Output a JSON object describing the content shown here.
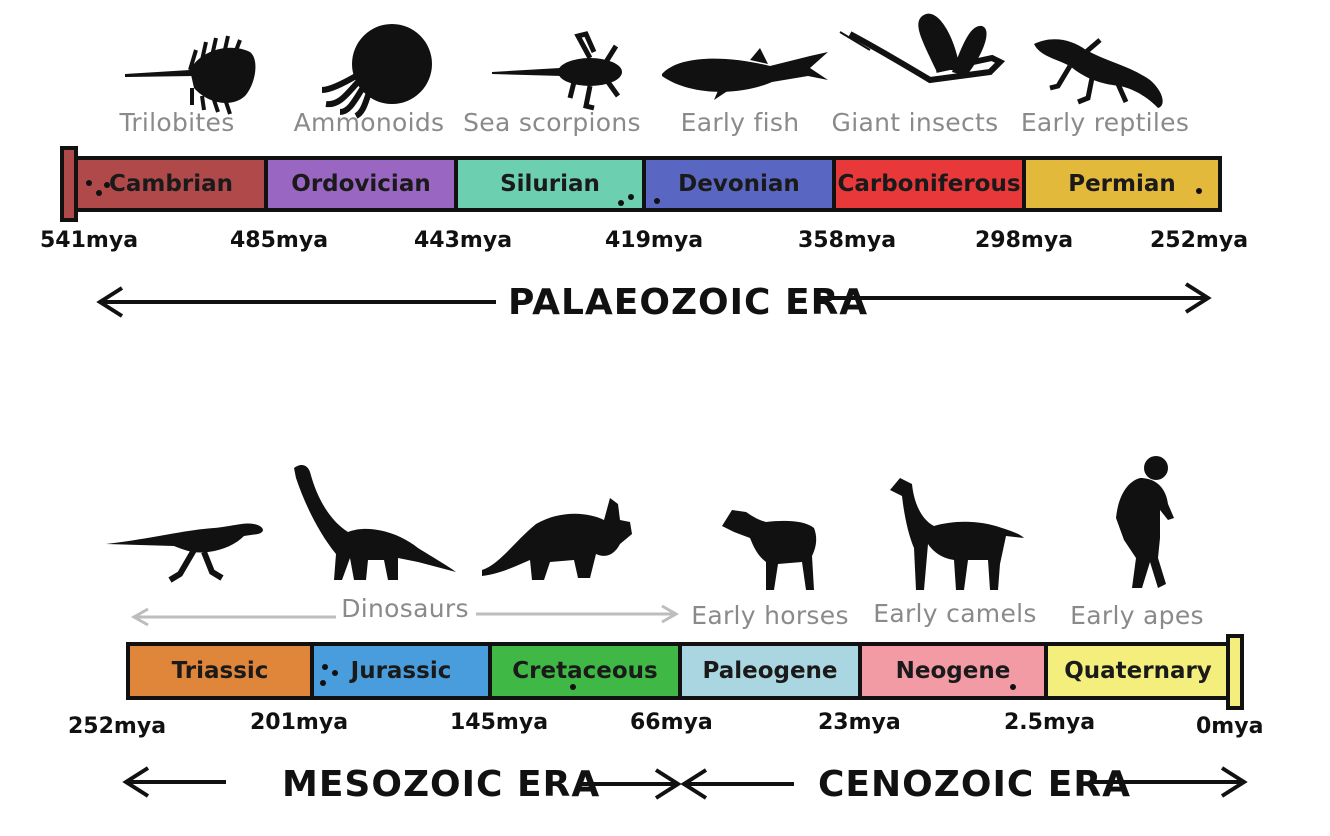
{
  "palaeozoic": {
    "animals": [
      "Trilobites",
      "Ammonoids",
      "Sea scorpions",
      "Early fish",
      "Giant insects",
      "Early reptiles"
    ],
    "periods": [
      {
        "name": "Cambrian",
        "color": "#b04a4a"
      },
      {
        "name": "Ordovician",
        "color": "#9966c2"
      },
      {
        "name": "Silurian",
        "color": "#6ccfaf"
      },
      {
        "name": "Devonian",
        "color": "#5967c2"
      },
      {
        "name": "Carboniferous",
        "color": "#e8383a"
      },
      {
        "name": "Permian",
        "color": "#e2b93b"
      }
    ],
    "dates": [
      "541mya",
      "485mya",
      "443mya",
      "419mya",
      "358mya",
      "298mya",
      "252mya"
    ],
    "era": "PALAEOZOIC ERA"
  },
  "mesocenozoic": {
    "dinosaurs_label": "Dinosaurs",
    "animals": [
      "Early horses",
      "Early camels",
      "Early apes"
    ],
    "periods": [
      {
        "name": "Triassic",
        "color": "#e0863a"
      },
      {
        "name": "Jurassic",
        "color": "#4a9ddc"
      },
      {
        "name": "Cretaceous",
        "color": "#40b845"
      },
      {
        "name": "Paleogene",
        "color": "#a9d6e0"
      },
      {
        "name": "Neogene",
        "color": "#f29ba5"
      },
      {
        "name": "Quaternary",
        "color": "#f4ef7c"
      }
    ],
    "dates": [
      "252mya",
      "201mya",
      "145mya",
      "66mya",
      "23mya",
      "2.5mya",
      "0mya"
    ],
    "eras": [
      "MESOZOIC ERA",
      "CENOZOIC ERA"
    ]
  },
  "icons": [
    "trilobite-icon",
    "ammonoid-icon",
    "sea-scorpion-icon",
    "fish-icon",
    "insect-icon",
    "reptile-icon",
    "small-dinosaur-icon",
    "sauropod-icon",
    "triceratops-icon",
    "horse-icon",
    "camel-icon",
    "ape-icon"
  ]
}
